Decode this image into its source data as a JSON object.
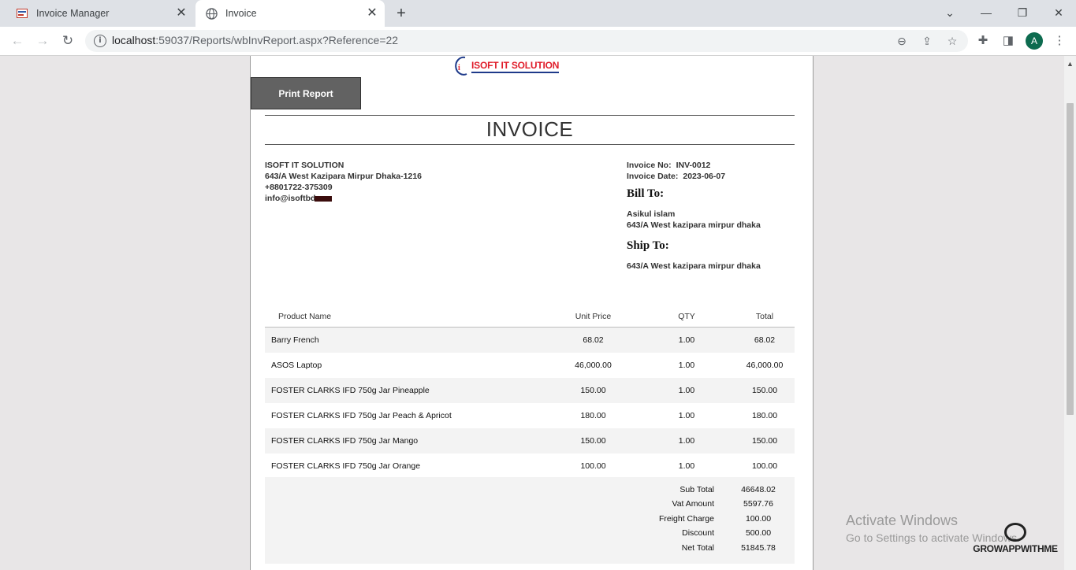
{
  "browser": {
    "tabs": [
      {
        "title": "Invoice Manager",
        "active": false,
        "icon": "app-favicon"
      },
      {
        "title": "Invoice",
        "active": true,
        "icon": "globe-icon"
      }
    ],
    "url_host": "localhost",
    "url_rest": ":59037/Reports/wbInvReport.aspx?Reference=22",
    "profile_initial": "A"
  },
  "report": {
    "logo_text": "ISOFT IT SOLUTION",
    "print_button": "Print Report",
    "title": "INVOICE",
    "company": {
      "name": "ISOFT IT SOLUTION",
      "address": "643/A West Kazipara Mirpur Dhaka-1216",
      "phone": "+8801722-375309",
      "email": "info@isoftbd"
    },
    "invoice_no_label": "Invoice No:",
    "invoice_no": "INV-0012",
    "invoice_date_label": "Invoice Date:",
    "invoice_date": "2023-06-07",
    "bill_to_label": "Bill To:",
    "bill_to_name": "Asikul islam",
    "bill_to_address": "643/A West kazipara mirpur dhaka",
    "ship_to_label": "Ship To:",
    "ship_to_address": "643/A West kazipara mirpur dhaka",
    "columns": [
      "Product Name",
      "Unit Price",
      "QTY",
      "Total"
    ],
    "items": [
      {
        "name": "Barry French",
        "unit_price": "68.02",
        "qty": "1.00",
        "total": "68.02"
      },
      {
        "name": "ASOS Laptop",
        "unit_price": "46,000.00",
        "qty": "1.00",
        "total": "46,000.00"
      },
      {
        "name": "FOSTER CLARKS IFD 750g Jar Pineapple",
        "unit_price": "150.00",
        "qty": "1.00",
        "total": "150.00"
      },
      {
        "name": "FOSTER CLARKS IFD 750g Jar Peach & Apricot",
        "unit_price": "180.00",
        "qty": "1.00",
        "total": "180.00"
      },
      {
        "name": "FOSTER CLARKS IFD 750g Jar Mango",
        "unit_price": "150.00",
        "qty": "1.00",
        "total": "150.00"
      },
      {
        "name": "FOSTER CLARKS IFD 750g Jar Orange",
        "unit_price": "100.00",
        "qty": "1.00",
        "total": "100.00"
      }
    ],
    "totals": [
      {
        "label": "Sub Total",
        "value": "46648.02"
      },
      {
        "label": "Vat Amount",
        "value": "5597.76"
      },
      {
        "label": "Freight Charge",
        "value": "100.00"
      },
      {
        "label": "Discount",
        "value": "500.00"
      },
      {
        "label": "Net Total",
        "value": "51845.78"
      }
    ]
  },
  "overlay": {
    "activate_title": "Activate Windows",
    "activate_sub": "Go to Settings to activate Windows.",
    "watermark": "GROWAPPWITHME"
  }
}
